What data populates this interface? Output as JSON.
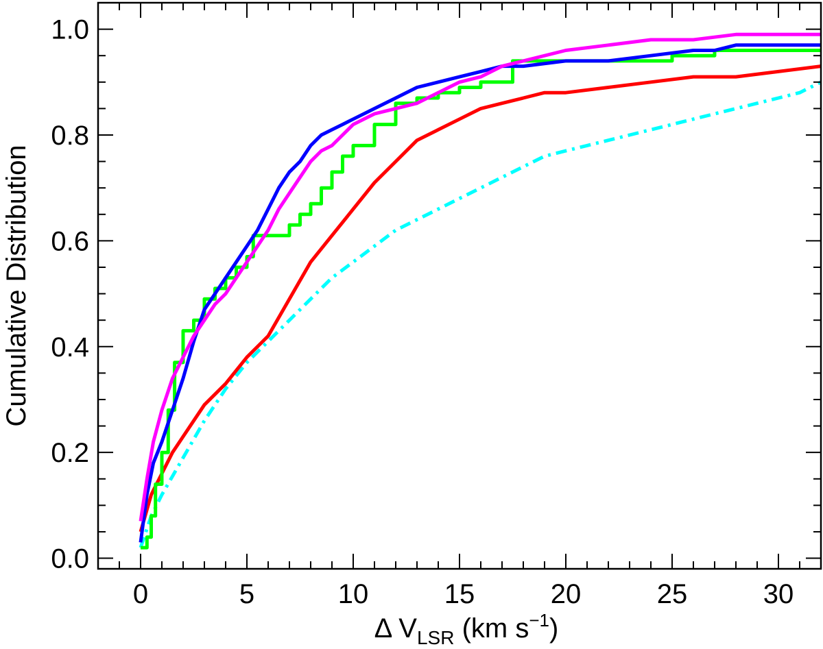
{
  "chart_data": {
    "type": "line",
    "title": "",
    "xlabel": {
      "prefix": "Δ V",
      "subscript": "LSR",
      "unit_open": " (km s",
      "superscript": "−1",
      "unit_close": ")"
    },
    "ylabel": "Cumulative Distribution",
    "xlim": [
      -2,
      32
    ],
    "ylim": [
      -0.02,
      1.05
    ],
    "x_ticks": [
      0,
      5,
      10,
      15,
      20,
      25,
      30
    ],
    "x_tick_labels": [
      "0",
      "5",
      "10",
      "15",
      "20",
      "25",
      "30"
    ],
    "y_ticks": [
      0.0,
      0.2,
      0.4,
      0.6,
      0.8,
      1.0
    ],
    "y_tick_labels": [
      "0.0",
      "0.2",
      "0.4",
      "0.6",
      "0.8",
      "1.0"
    ],
    "x_minor_step": 1,
    "y_minor_step": 0.05,
    "grid": false,
    "legend": "none",
    "series": [
      {
        "color": "#00ffff",
        "dash": "dashdot",
        "step": false,
        "x": [
          0,
          0.5,
          1,
          2,
          3,
          4,
          5,
          6,
          7,
          8,
          9,
          10,
          11,
          12,
          13,
          14,
          15,
          16,
          17,
          18,
          19,
          20,
          21,
          22,
          23,
          24,
          25,
          26,
          27,
          28,
          29,
          30,
          31,
          32
        ],
        "y": [
          0.02,
          0.08,
          0.12,
          0.19,
          0.26,
          0.32,
          0.37,
          0.41,
          0.45,
          0.49,
          0.53,
          0.56,
          0.59,
          0.62,
          0.64,
          0.66,
          0.68,
          0.7,
          0.72,
          0.74,
          0.76,
          0.77,
          0.78,
          0.79,
          0.8,
          0.81,
          0.82,
          0.83,
          0.84,
          0.85,
          0.86,
          0.87,
          0.88,
          0.9
        ]
      },
      {
        "color": "#ff0000",
        "dash": "solid",
        "step": false,
        "x": [
          0,
          0.5,
          1,
          1.5,
          2,
          3,
          4,
          5,
          6,
          7,
          8,
          9,
          10,
          11,
          12,
          13,
          14,
          15,
          16,
          17,
          18,
          19,
          20,
          22,
          24,
          26,
          28,
          30,
          32
        ],
        "y": [
          0.05,
          0.12,
          0.16,
          0.2,
          0.23,
          0.29,
          0.33,
          0.38,
          0.42,
          0.49,
          0.56,
          0.61,
          0.66,
          0.71,
          0.75,
          0.79,
          0.81,
          0.83,
          0.85,
          0.86,
          0.87,
          0.88,
          0.88,
          0.89,
          0.9,
          0.91,
          0.91,
          0.92,
          0.93
        ]
      },
      {
        "color": "#00ff00",
        "dash": "solid",
        "step": true,
        "x": [
          0,
          0.3,
          0.5,
          0.7,
          1,
          1.3,
          1.6,
          2,
          2.5,
          3,
          3.5,
          4,
          4.5,
          5,
          5.3,
          7,
          7.5,
          8,
          8.5,
          9,
          9.5,
          10,
          11,
          12,
          13,
          14,
          15,
          16,
          17.5,
          18,
          19,
          22,
          25,
          27,
          32
        ],
        "y": [
          0.02,
          0.04,
          0.08,
          0.14,
          0.2,
          0.28,
          0.37,
          0.43,
          0.45,
          0.49,
          0.51,
          0.53,
          0.55,
          0.57,
          0.61,
          0.63,
          0.65,
          0.67,
          0.7,
          0.73,
          0.76,
          0.78,
          0.82,
          0.86,
          0.87,
          0.88,
          0.89,
          0.9,
          0.94,
          0.94,
          0.94,
          0.94,
          0.95,
          0.96,
          0.96
        ]
      },
      {
        "color": "#0000ff",
        "dash": "solid",
        "step": false,
        "x": [
          0,
          0.3,
          0.6,
          1,
          1.5,
          2,
          2.5,
          3,
          3.5,
          4,
          4.5,
          5,
          5.5,
          6,
          6.5,
          7,
          7.5,
          8,
          8.5,
          9,
          9.5,
          10,
          11,
          12,
          13,
          14,
          15,
          16,
          17,
          18,
          20,
          22,
          24,
          26,
          27,
          28,
          30,
          32
        ],
        "y": [
          0.03,
          0.12,
          0.18,
          0.22,
          0.28,
          0.34,
          0.41,
          0.47,
          0.5,
          0.53,
          0.56,
          0.59,
          0.62,
          0.66,
          0.7,
          0.73,
          0.75,
          0.78,
          0.8,
          0.81,
          0.82,
          0.83,
          0.85,
          0.87,
          0.89,
          0.9,
          0.91,
          0.92,
          0.93,
          0.93,
          0.94,
          0.94,
          0.95,
          0.96,
          0.96,
          0.97,
          0.97,
          0.97
        ]
      },
      {
        "color": "#ff00ff",
        "dash": "solid",
        "step": false,
        "x": [
          0,
          0.3,
          0.6,
          1,
          1.5,
          2,
          2.5,
          3,
          3.5,
          4,
          4.5,
          5,
          5.5,
          6,
          6.5,
          7,
          7.5,
          8,
          8.5,
          9,
          9.5,
          10,
          11,
          12,
          13,
          14,
          15,
          16,
          17,
          18,
          20,
          22,
          24,
          26,
          28,
          30,
          32
        ],
        "y": [
          0.07,
          0.15,
          0.22,
          0.28,
          0.34,
          0.38,
          0.42,
          0.45,
          0.48,
          0.5,
          0.53,
          0.56,
          0.59,
          0.62,
          0.66,
          0.69,
          0.72,
          0.75,
          0.77,
          0.78,
          0.8,
          0.82,
          0.84,
          0.85,
          0.86,
          0.88,
          0.9,
          0.91,
          0.93,
          0.94,
          0.96,
          0.97,
          0.98,
          0.98,
          0.99,
          0.99,
          0.99
        ]
      }
    ]
  }
}
